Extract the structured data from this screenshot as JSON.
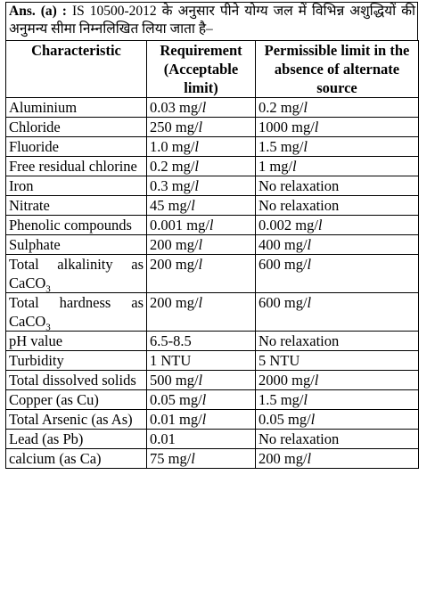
{
  "intro": {
    "label": "Ans. (a) :",
    "text": "IS 10500-2012 के अनुसार पीने योग्य जल में विभिन्न अशुद्धियों की अनुमन्य सीमा निम्नलिखित लिया जाता है–"
  },
  "table": {
    "headers": [
      "Characteristic",
      "Requirement (Acceptable limit)",
      "Permissible limit in the absence of alternate source"
    ],
    "rows": [
      {
        "characteristic": "Aluminium",
        "requirement_value": "0.03 mg/",
        "requirement_unit": "l",
        "permissible_value": "0.2 mg/",
        "permissible_unit": "l"
      },
      {
        "characteristic": "Chloride",
        "requirement_value": "250 mg/",
        "requirement_unit": "l",
        "permissible_value": "1000 mg/",
        "permissible_unit": "l"
      },
      {
        "characteristic": "Fluoride",
        "requirement_value": "1.0 mg/",
        "requirement_unit": "l",
        "permissible_value": "1.5 mg/",
        "permissible_unit": "l"
      },
      {
        "characteristic": "Free residual chlorine",
        "requirement_value": "0.2 mg/",
        "requirement_unit": "l",
        "permissible_value": "1 mg/",
        "permissible_unit": "l"
      },
      {
        "characteristic": "Iron",
        "requirement_value": "0.3 mg/",
        "requirement_unit": "l",
        "permissible_value": "No relaxation",
        "permissible_unit": ""
      },
      {
        "characteristic": "Nitrate",
        "requirement_value": "45 mg/",
        "requirement_unit": "l",
        "permissible_value": "No relaxation",
        "permissible_unit": ""
      },
      {
        "characteristic": "Phenolic compounds",
        "requirement_value": "0.001 mg/",
        "requirement_unit": "l",
        "permissible_value": "0.002 mg/",
        "permissible_unit": "l"
      },
      {
        "characteristic": "Sulphate",
        "requirement_value": "200 mg/",
        "requirement_unit": "l",
        "permissible_value": "400 mg/",
        "permissible_unit": "l"
      },
      {
        "characteristic": "Total alkalinity as CaCO",
        "characteristic_sub": "3",
        "requirement_value": "200 mg/",
        "requirement_unit": "l",
        "permissible_value": "600 mg/",
        "permissible_unit": "l"
      },
      {
        "characteristic": "Total hardness as CaCO",
        "characteristic_sub": "3",
        "requirement_value": "200 mg/",
        "requirement_unit": "l",
        "permissible_value": "600 mg/",
        "permissible_unit": "l"
      },
      {
        "characteristic": "pH value",
        "requirement_value": "6.5-8.5",
        "requirement_unit": "",
        "permissible_value": "No relaxation",
        "permissible_unit": ""
      },
      {
        "characteristic": "Turbidity",
        "requirement_value": "1 NTU",
        "requirement_unit": "",
        "permissible_value": "5 NTU",
        "permissible_unit": ""
      },
      {
        "characteristic": "Total dissolved solids",
        "requirement_value": "500 mg/",
        "requirement_unit": "l",
        "permissible_value": "2000 mg/",
        "permissible_unit": "l"
      },
      {
        "characteristic": "Copper (as Cu)",
        "requirement_value": "0.05 mg/",
        "requirement_unit": "l",
        "permissible_value": "1.5 mg/",
        "permissible_unit": "l"
      },
      {
        "characteristic": "Total Arsenic (as As)",
        "requirement_value": "0.01 mg/",
        "requirement_unit": "l",
        "permissible_value": "0.05 mg/",
        "permissible_unit": "l"
      },
      {
        "characteristic": "Lead (as Pb)",
        "requirement_value": "0.01",
        "requirement_unit": "",
        "permissible_value": "No relaxation",
        "permissible_unit": ""
      },
      {
        "characteristic": "calcium (as Ca)",
        "requirement_value": "75 mg/",
        "requirement_unit": "l",
        "permissible_value": "200 mg/",
        "permissible_unit": "l"
      }
    ]
  }
}
